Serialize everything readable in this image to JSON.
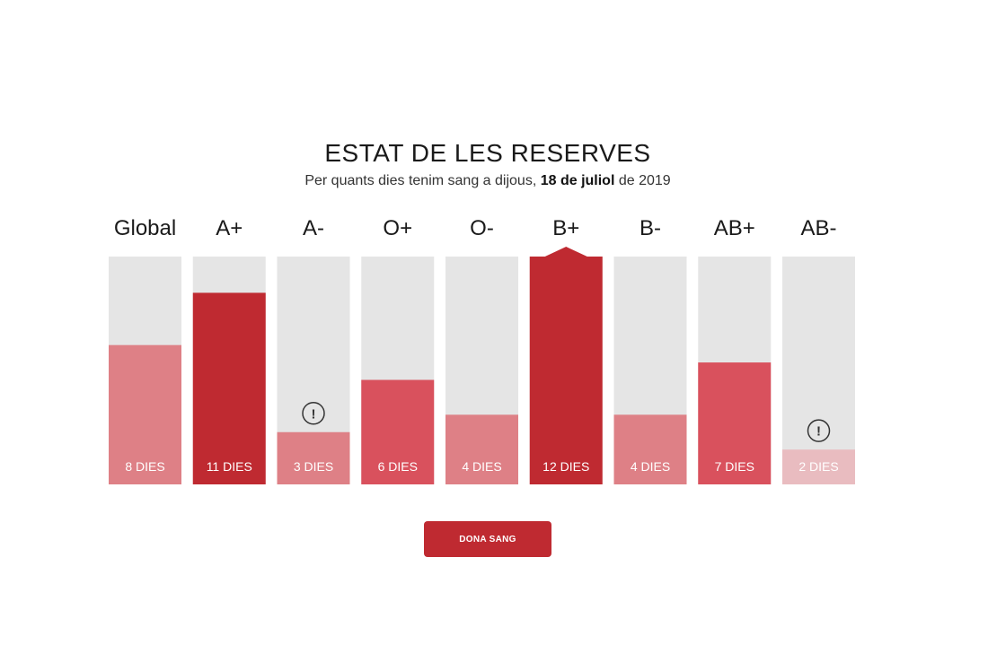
{
  "header": {
    "title": "ESTAT DE LES RESERVES",
    "subtitle_prefix": "Per quants dies tenim sang a dijous, ",
    "subtitle_date": "18 de juliol",
    "subtitle_suffix": " de 2019"
  },
  "cta": {
    "label": "DONA SANG"
  },
  "colors": {
    "track": "#e5e5e5",
    "level_critical": "#bf2a31",
    "level_high": "#d9515d",
    "level_medium": "#de8086",
    "level_low": "#e9bcc0",
    "warning_icon": "#333333"
  },
  "chart_data": {
    "type": "bar",
    "title": "ESTAT DE LES RESERVES",
    "ylim": [
      0,
      12
    ],
    "categories": [
      "Global",
      "A+",
      "A-",
      "O+",
      "O-",
      "B+",
      "B-",
      "AB+",
      "AB-"
    ],
    "values": [
      8,
      11,
      3,
      6,
      4,
      12,
      4,
      7,
      2
    ],
    "value_labels": [
      "8 DIES",
      "11 DIES",
      "3 DIES",
      "6 DIES",
      "4 DIES",
      "12 DIES",
      "4 DIES",
      "7 DIES",
      "2 DIES"
    ],
    "level_colors": [
      "#de8086",
      "#bf2a31",
      "#de8086",
      "#d9515d",
      "#de8086",
      "#bf2a31",
      "#de8086",
      "#d9515d",
      "#e9bcc0"
    ],
    "warning": [
      false,
      false,
      true,
      false,
      false,
      false,
      false,
      false,
      true
    ],
    "overflow": [
      false,
      false,
      false,
      false,
      false,
      true,
      false,
      false,
      false
    ],
    "warning_symbol": "!"
  }
}
